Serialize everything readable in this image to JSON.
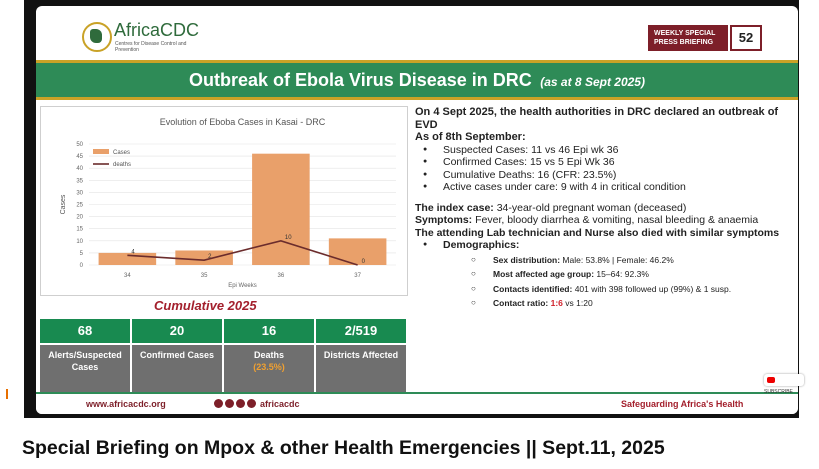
{
  "header": {
    "logo_name": "AfricaCDC",
    "logo_sub": "Centres for Disease Control and Prevention",
    "weekly_label": "WEEKLY SPECIAL PRESS BRIEFING",
    "weekly_number": "52"
  },
  "banner": {
    "title": "Outbreak of Ebola Virus Disease in DRC",
    "date": "(as at 8 Sept 2025)"
  },
  "chart_data": {
    "type": "bar",
    "title": "Evolution of Eboba Cases in Kasai - DRC",
    "xlabel": "Epi Weeks",
    "ylabel": "Cases",
    "categories": [
      "34",
      "35",
      "36",
      "37"
    ],
    "ylim": [
      0,
      50
    ],
    "yticks": [
      0,
      5,
      10,
      15,
      20,
      25,
      30,
      35,
      40,
      45,
      50
    ],
    "series": [
      {
        "name": "Cases",
        "type": "bar",
        "color": "#e9a06a",
        "values": [
          5,
          6,
          46,
          11
        ]
      },
      {
        "name": "deaths",
        "type": "line",
        "color": "#6b2c2c",
        "values": [
          4,
          2,
          10,
          0
        ]
      }
    ],
    "data_labels": [
      "4",
      "2",
      "10",
      "0"
    ],
    "legend_position": "top-left",
    "grid": true
  },
  "cumulative": {
    "title": "Cumulative 2025",
    "stats": [
      {
        "value": "68",
        "label": "Alerts/Suspected Cases",
        "extra": ""
      },
      {
        "value": "20",
        "label": "Confirmed Cases",
        "extra": ""
      },
      {
        "value": "16",
        "label": "Deaths",
        "extra": "(23.5%)"
      },
      {
        "value": "2/519",
        "label": "Districts Affected",
        "extra": ""
      }
    ]
  },
  "right": {
    "intro": "On 4 Sept 2025, the health authorities in DRC declared an outbreak of EVD",
    "as_of": "As of 8th September:",
    "bullets": [
      "Suspected Cases:  11 vs 46 Epi wk 36",
      "Confirmed Cases: 15 vs 5 Epi Wk 36",
      "Cumulative Deaths: 16 (CFR: 23.5%)",
      "Active cases under care: 9 with 4 in critical condition"
    ],
    "index_label": "The index case:",
    "index_text": " 34-year-old pregnant woman (deceased)",
    "symptoms_label": "Symptoms:",
    "symptoms_text": " Fever, bloody diarrhea & vomiting, nasal bleeding & anaemia",
    "lab_text": "The attending Lab technician and Nurse also died with similar symptoms",
    "demographics_label": "Demographics:",
    "sex_label": "Sex distribution:",
    "sex_text": " Male: 53.8% | Female: 46.2%",
    "age_label": "Most affected age group:",
    "age_text": " 15–64: 92.3%",
    "contacts_label": "Contacts identified:",
    "contacts_text": " 401 with 398 followed up (99%) & 1 susp.",
    "ratio_label": "Contact ratio:",
    "ratio_red": "1:6",
    "ratio_text": " vs 1:20"
  },
  "footer": {
    "website": "www.africacdc.org",
    "handle": "africacdc",
    "tagline": "Safeguarding Africa's Health"
  },
  "subscribe": "SUBSCRIBE",
  "caption": "Special Briefing on Mpox & other Health Emergencies || Sept.11, 2025"
}
